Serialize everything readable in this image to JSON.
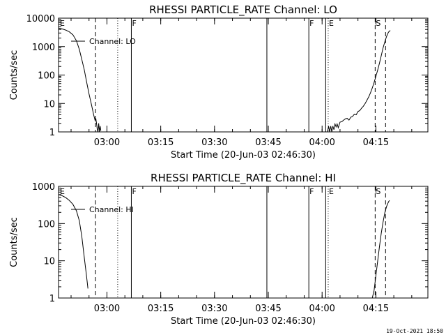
{
  "chart_data": [
    {
      "type": "line",
      "title": "RHESSI PARTICLE_RATE Channel: LO",
      "xlabel": "Start Time (20-Jun-03 02:46:30)",
      "ylabel": "Counts/sec",
      "yscale": "log",
      "ylim": [
        1,
        10000
      ],
      "xlim_minutes": [
        0,
        103
      ],
      "x_ticks": [
        {
          "value": 13.5,
          "label": "03:00"
        },
        {
          "value": 28.5,
          "label": "03:15"
        },
        {
          "value": 43.5,
          "label": "03:30"
        },
        {
          "value": 58.5,
          "label": "03:45"
        },
        {
          "value": 73.5,
          "label": "04:00"
        },
        {
          "value": 88.5,
          "label": "04:15"
        }
      ],
      "y_ticks": [
        {
          "value": 1,
          "label": "1"
        },
        {
          "value": 10,
          "label": "10"
        },
        {
          "value": 100,
          "label": "100"
        },
        {
          "value": 1000,
          "label": "1000"
        },
        {
          "value": 10000,
          "label": "10000"
        }
      ],
      "legend": "Channel: LO",
      "markers": [
        {
          "x": 0.2,
          "style": "none",
          "label": "E"
        },
        {
          "x": 10.3,
          "style": "dashed",
          "label": ""
        },
        {
          "x": 16.5,
          "style": "dotted",
          "label": ""
        },
        {
          "x": 20.3,
          "style": "solid",
          "label": "F"
        },
        {
          "x": 58.1,
          "style": "solid",
          "label": ""
        },
        {
          "x": 69.8,
          "style": "solid",
          "label": "F"
        },
        {
          "x": 74.5,
          "style": "solid",
          "label": ""
        },
        {
          "x": 75.2,
          "style": "dotted",
          "label": "E"
        },
        {
          "x": 88.3,
          "style": "dashed",
          "label": "S"
        },
        {
          "x": 91.2,
          "style": "dashed",
          "label": ""
        }
      ],
      "series": [
        {
          "name": "Channel: LO",
          "segments": [
            [
              [
                0,
                4500
              ],
              [
                1,
                4200
              ],
              [
                2,
                3800
              ],
              [
                3,
                3300
              ],
              [
                4,
                2600
              ],
              [
                5,
                1600
              ],
              [
                5.8,
                800
              ],
              [
                6.5,
                350
              ],
              [
                7.2,
                150
              ],
              [
                7.8,
                60
              ],
              [
                8.5,
                22
              ],
              [
                9.2,
                9
              ],
              [
                9.8,
                4
              ],
              [
                10.2,
                2.5
              ],
              [
                10.4,
                3
              ],
              [
                10.6,
                2
              ],
              [
                10.8,
                1.2
              ],
              [
                11,
                1
              ],
              [
                11.2,
                2
              ],
              [
                11.4,
                1
              ],
              [
                11.6,
                1.6
              ],
              [
                11.8,
                1.1
              ]
            ],
            [
              [
                75,
                1
              ],
              [
                75.3,
                1.6
              ],
              [
                75.6,
                1
              ],
              [
                75.9,
                1.6
              ],
              [
                76.2,
                1
              ],
              [
                76.5,
                1.6
              ],
              [
                76.8,
                1.2
              ],
              [
                77.1,
                1.9
              ],
              [
                77.4,
                1.5
              ],
              [
                77.7,
                1.9
              ],
              [
                78,
                1.4
              ],
              [
                78.5,
                2.2
              ],
              [
                79,
                2.3
              ],
              [
                79.5,
                2.6
              ],
              [
                80,
                2.9
              ],
              [
                80.5,
                3
              ],
              [
                81,
                2.6
              ],
              [
                81.5,
                3.3
              ],
              [
                82,
                3.5
              ],
              [
                82.5,
                4.2
              ],
              [
                83,
                4
              ],
              [
                83.5,
                5.2
              ],
              [
                84,
                5.6
              ],
              [
                84.5,
                6.8
              ],
              [
                85,
                8
              ],
              [
                85.5,
                10
              ],
              [
                86,
                13
              ],
              [
                86.5,
                17
              ],
              [
                87,
                24
              ],
              [
                87.5,
                35
              ],
              [
                88,
                55
              ],
              [
                88.5,
                90
              ],
              [
                89,
                150
              ],
              [
                89.5,
                260
              ],
              [
                90,
                480
              ],
              [
                90.5,
                900
              ],
              [
                91,
                1500
              ],
              [
                91.5,
                2300
              ],
              [
                92,
                3200
              ],
              [
                92.5,
                3700
              ]
            ]
          ]
        }
      ]
    },
    {
      "type": "line",
      "title": "RHESSI PARTICLE_RATE Channel: HI",
      "xlabel": "Start Time (20-Jun-03 02:46:30)",
      "ylabel": "Counts/sec",
      "yscale": "log",
      "ylim": [
        1,
        1000
      ],
      "xlim_minutes": [
        0,
        103
      ],
      "x_ticks": [
        {
          "value": 13.5,
          "label": "03:00"
        },
        {
          "value": 28.5,
          "label": "03:15"
        },
        {
          "value": 43.5,
          "label": "03:30"
        },
        {
          "value": 58.5,
          "label": "03:45"
        },
        {
          "value": 73.5,
          "label": "04:00"
        },
        {
          "value": 88.5,
          "label": "04:15"
        }
      ],
      "y_ticks": [
        {
          "value": 1,
          "label": "1"
        },
        {
          "value": 10,
          "label": "10"
        },
        {
          "value": 100,
          "label": "100"
        },
        {
          "value": 1000,
          "label": "1000"
        }
      ],
      "legend": "Channel: HI",
      "markers": [
        {
          "x": 0.2,
          "style": "none",
          "label": "E"
        },
        {
          "x": 10.3,
          "style": "dashed",
          "label": ""
        },
        {
          "x": 16.5,
          "style": "dotted",
          "label": ""
        },
        {
          "x": 20.3,
          "style": "solid",
          "label": "F"
        },
        {
          "x": 58.1,
          "style": "solid",
          "label": ""
        },
        {
          "x": 69.8,
          "style": "solid",
          "label": "F"
        },
        {
          "x": 74.5,
          "style": "solid",
          "label": ""
        },
        {
          "x": 75.2,
          "style": "dotted",
          "label": "E"
        },
        {
          "x": 88.3,
          "style": "dashed",
          "label": "S"
        },
        {
          "x": 91.2,
          "style": "dashed",
          "label": ""
        }
      ],
      "series": [
        {
          "name": "Channel: HI",
          "segments": [
            [
              [
                0,
                600
              ],
              [
                1,
                560
              ],
              [
                2,
                500
              ],
              [
                3,
                420
              ],
              [
                4,
                330
              ],
              [
                5,
                220
              ],
              [
                5.8,
                120
              ],
              [
                6.5,
                45
              ],
              [
                7.2,
                12
              ],
              [
                7.8,
                4
              ],
              [
                8.2,
                1.8
              ]
            ],
            [
              [
                87.5,
                1
              ],
              [
                88,
                1.6
              ],
              [
                88.5,
                4
              ],
              [
                89,
                10
              ],
              [
                89.5,
                24
              ],
              [
                90,
                55
              ],
              [
                90.5,
                110
              ],
              [
                91,
                200
              ],
              [
                91.5,
                290
              ],
              [
                92,
                380
              ],
              [
                92.3,
                420
              ]
            ]
          ]
        }
      ]
    }
  ],
  "footer": "19-Oct-2021 18:50"
}
